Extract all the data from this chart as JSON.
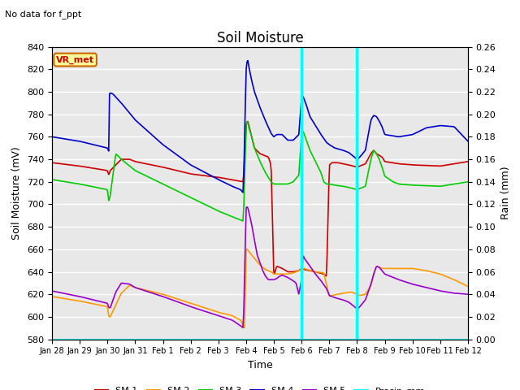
{
  "title": "Soil Moisture",
  "xlabel": "Time",
  "ylabel_left": "Soil Moisture (mV)",
  "ylabel_right": "Rain (mm)",
  "text_no_data": "No data for f_ppt",
  "vr_met_label": "VR_met",
  "ylim_left": [
    580,
    840
  ],
  "ylim_right": [
    0.0,
    0.26
  ],
  "yticks_left": [
    580,
    600,
    620,
    640,
    660,
    680,
    700,
    720,
    740,
    760,
    780,
    800,
    820,
    840
  ],
  "yticks_right": [
    0.0,
    0.02,
    0.04,
    0.06,
    0.08,
    0.1,
    0.12,
    0.14,
    0.16,
    0.18,
    0.2,
    0.22,
    0.24,
    0.26
  ],
  "xtick_labels": [
    "Jan 28",
    "Jan 29",
    "Jan 30",
    "Jan 31",
    "Feb 1",
    "Feb 2",
    "Feb 3",
    "Feb 4",
    "Feb 5",
    "Feb 6",
    "Feb 7",
    "Feb 8",
    "Feb 9",
    "Feb 10",
    "Feb 11",
    "Feb 12"
  ],
  "vlines_x": [
    9.0,
    11.0
  ],
  "vline_color": "cyan",
  "colors": {
    "SM1": "#cc0000",
    "SM2": "#ff9900",
    "SM3": "#00cc00",
    "SM4": "#0000cc",
    "SM5": "#9900cc",
    "Precip_mm": "cyan"
  },
  "background_color": "#e8e8e8",
  "grid_color": "white",
  "figsize": [
    6.4,
    4.8
  ],
  "dpi": 100
}
